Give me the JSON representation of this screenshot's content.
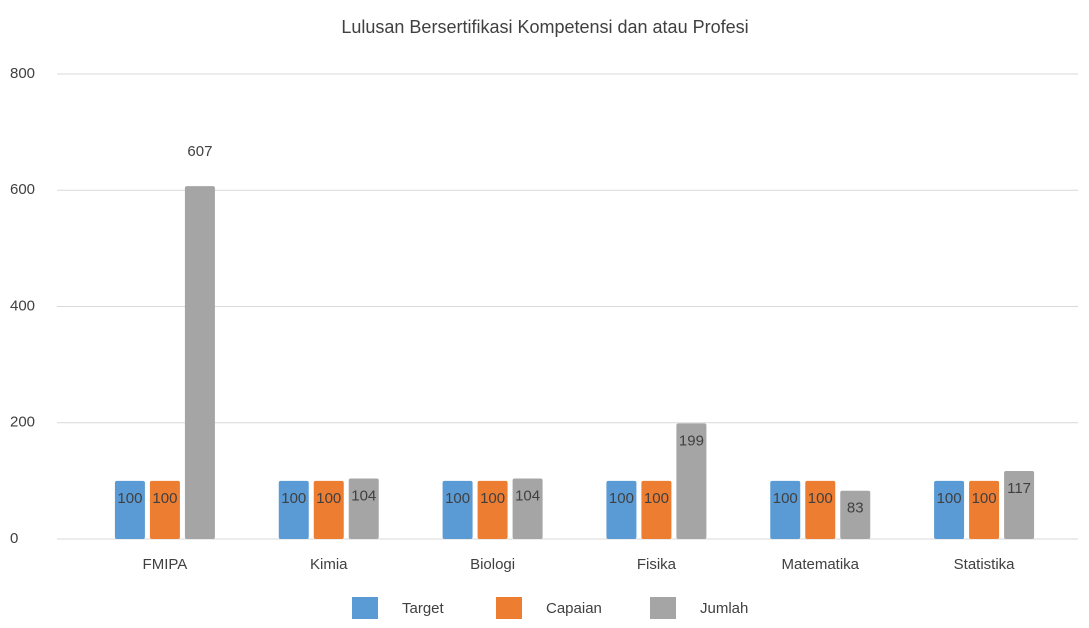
{
  "chart_data": {
    "type": "bar",
    "title": "Lulusan Bersertifikasi Kompetensi dan atau Profesi",
    "categories": [
      "FMIPA",
      "Kimia",
      "Biologi",
      "Fisika",
      "Matematika",
      "Statistika"
    ],
    "series": [
      {
        "name": "Target",
        "color": "#5b9bd5",
        "values": [
          100,
          100,
          100,
          100,
          100,
          100
        ]
      },
      {
        "name": "Capaian",
        "color": "#ed7d31",
        "values": [
          100,
          100,
          100,
          100,
          100,
          100
        ]
      },
      {
        "name": "Jumlah",
        "color": "#a5a5a5",
        "values": [
          607,
          104,
          104,
          199,
          83,
          117
        ]
      }
    ],
    "ylim": [
      0,
      800
    ],
    "yticks": [
      0,
      200,
      400,
      600,
      800
    ],
    "grid": true,
    "legend": "bottom"
  }
}
